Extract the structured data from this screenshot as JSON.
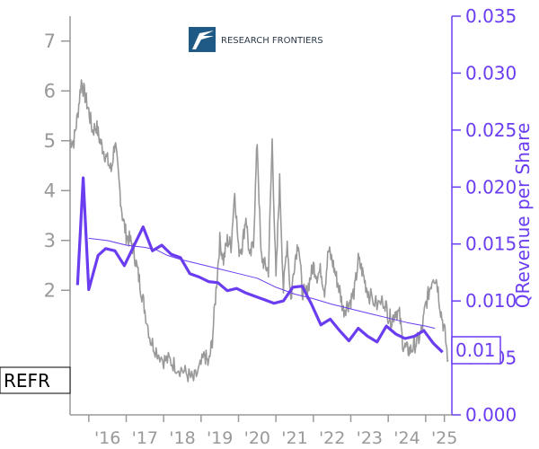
{
  "chart_data": {
    "type": "line",
    "ticker": "REFR",
    "logo_text": "RESEARCH FRONTIERS",
    "right_axis_label": "QRevenue per Share",
    "last_value_label": "0.01",
    "left_axis": {
      "ylim": [
        -0.5,
        7.5
      ],
      "ticks": [
        "2",
        "3",
        "4",
        "5",
        "6",
        "7"
      ]
    },
    "right_axis": {
      "ylim": [
        0.0,
        0.035
      ],
      "ticks": [
        "0.000",
        "0.005",
        "0.010",
        "0.015",
        "0.020",
        "0.025",
        "0.030",
        "0.035"
      ]
    },
    "x_axis": {
      "xlim": [
        2015.0,
        2025.2
      ],
      "tick_labels": [
        "'16",
        "'17",
        "'18",
        "'19",
        "'20",
        "'21",
        "'22",
        "'23",
        "'24",
        "'25"
      ],
      "tick_positions": [
        2015.5,
        2016.5,
        2017.5,
        2018.5,
        2019.5,
        2020.5,
        2021.5,
        2022.5,
        2023.5,
        2024.5,
        2025.0
      ]
    },
    "colors": {
      "price": "#999999",
      "revenue": "#6a3df0",
      "ticker_box": "#000000"
    },
    "series": [
      {
        "key": "price",
        "axis": "left",
        "style": "noisy-line",
        "x": [
          2015.0,
          2015.1,
          2015.2,
          2015.3,
          2015.4,
          2015.5,
          2015.6,
          2015.7,
          2015.8,
          2015.9,
          2016.0,
          2016.1,
          2016.2,
          2016.3,
          2016.4,
          2016.5,
          2016.6,
          2016.7,
          2016.8,
          2016.9,
          2017.0,
          2017.15,
          2017.3,
          2017.5,
          2017.65,
          2017.8,
          2018.0,
          2018.15,
          2018.3,
          2018.45,
          2018.6,
          2018.7,
          2018.8,
          2018.9,
          2019.0,
          2019.1,
          2019.2,
          2019.3,
          2019.4,
          2019.5,
          2019.6,
          2019.7,
          2019.8,
          2019.9,
          2020.0,
          2020.1,
          2020.2,
          2020.3,
          2020.4,
          2020.5,
          2020.6,
          2020.7,
          2020.8,
          2020.9,
          2021.0,
          2021.1,
          2021.2,
          2021.3,
          2021.4,
          2021.5,
          2021.6,
          2021.7,
          2021.8,
          2021.9,
          2022.0,
          2022.1,
          2022.2,
          2022.3,
          2022.4,
          2022.5,
          2022.6,
          2022.7,
          2022.8,
          2022.9,
          2023.0,
          2023.2,
          2023.4,
          2023.5,
          2023.6,
          2023.7,
          2023.8,
          2023.9,
          2024.0,
          2024.1,
          2024.2,
          2024.3,
          2024.4,
          2024.5,
          2024.6,
          2024.7,
          2024.8,
          2024.9,
          2025.0,
          2025.1
        ],
        "values": [
          5.0,
          5.0,
          5.5,
          6.2,
          5.9,
          5.6,
          5.2,
          5.3,
          5.0,
          4.8,
          4.6,
          4.4,
          5.0,
          4.2,
          3.5,
          3.1,
          3.0,
          2.8,
          2.4,
          2.0,
          1.6,
          1.0,
          0.8,
          0.6,
          0.6,
          0.5,
          0.4,
          0.3,
          0.2,
          0.4,
          0.7,
          0.5,
          1.0,
          2.0,
          3.0,
          2.6,
          3.0,
          2.9,
          4.0,
          2.8,
          2.9,
          3.5,
          2.6,
          3.0,
          5.0,
          2.7,
          2.5,
          2.4,
          5.0,
          2.2,
          4.2,
          2.0,
          3.0,
          1.8,
          2.6,
          3.0,
          2.0,
          1.9,
          2.2,
          2.5,
          2.3,
          2.4,
          2.0,
          2.8,
          2.6,
          2.3,
          2.0,
          1.6,
          1.7,
          1.8,
          2.0,
          2.6,
          2.4,
          2.1,
          1.9,
          1.7,
          1.8,
          1.5,
          1.4,
          1.6,
          1.5,
          0.9,
          0.8,
          0.8,
          0.9,
          1.0,
          1.2,
          1.7,
          2.0,
          2.3,
          2.2,
          1.6,
          1.2,
          0.6
        ]
      },
      {
        "key": "revenue_smoothed",
        "axis": "right",
        "style": "thin-line",
        "x": [
          2015.5,
          2016.0,
          2016.5,
          2017.0,
          2017.3,
          2017.6,
          2018.0,
          2018.5,
          2019.0,
          2019.5,
          2020.0,
          2020.5,
          2021.0,
          2021.5,
          2022.0,
          2022.5,
          2023.0,
          2023.5,
          2024.0,
          2024.5,
          2024.75
        ],
        "values": [
          0.0155,
          0.0153,
          0.0149,
          0.0147,
          0.0145,
          0.014,
          0.0136,
          0.0132,
          0.0128,
          0.0124,
          0.012,
          0.0112,
          0.0106,
          0.0102,
          0.0097,
          0.0093,
          0.0089,
          0.0085,
          0.0081,
          0.0078,
          0.0076
        ]
      },
      {
        "key": "revenue",
        "axis": "right",
        "style": "thick-line",
        "x": [
          2015.2,
          2015.35,
          2015.5,
          2015.75,
          2015.95,
          2016.2,
          2016.45,
          2016.7,
          2016.95,
          2017.2,
          2017.45,
          2017.7,
          2017.95,
          2018.2,
          2018.45,
          2018.7,
          2018.95,
          2019.2,
          2019.45,
          2019.7,
          2019.95,
          2020.2,
          2020.45,
          2020.7,
          2020.95,
          2021.2,
          2021.45,
          2021.7,
          2021.95,
          2022.2,
          2022.45,
          2022.7,
          2022.95,
          2023.2,
          2023.45,
          2023.7,
          2023.95,
          2024.2,
          2024.45,
          2024.7,
          2024.95
        ],
        "values": [
          0.0114,
          0.0208,
          0.011,
          0.014,
          0.0146,
          0.0144,
          0.0131,
          0.0148,
          0.0165,
          0.0144,
          0.0149,
          0.0141,
          0.0138,
          0.0124,
          0.0121,
          0.0117,
          0.0116,
          0.0109,
          0.0111,
          0.0107,
          0.0104,
          0.0101,
          0.0098,
          0.01,
          0.0112,
          0.0113,
          0.0097,
          0.0079,
          0.0084,
          0.0074,
          0.0065,
          0.0076,
          0.0069,
          0.0064,
          0.0078,
          0.0071,
          0.0067,
          0.0069,
          0.0074,
          0.0063,
          0.0055
        ]
      }
    ]
  }
}
